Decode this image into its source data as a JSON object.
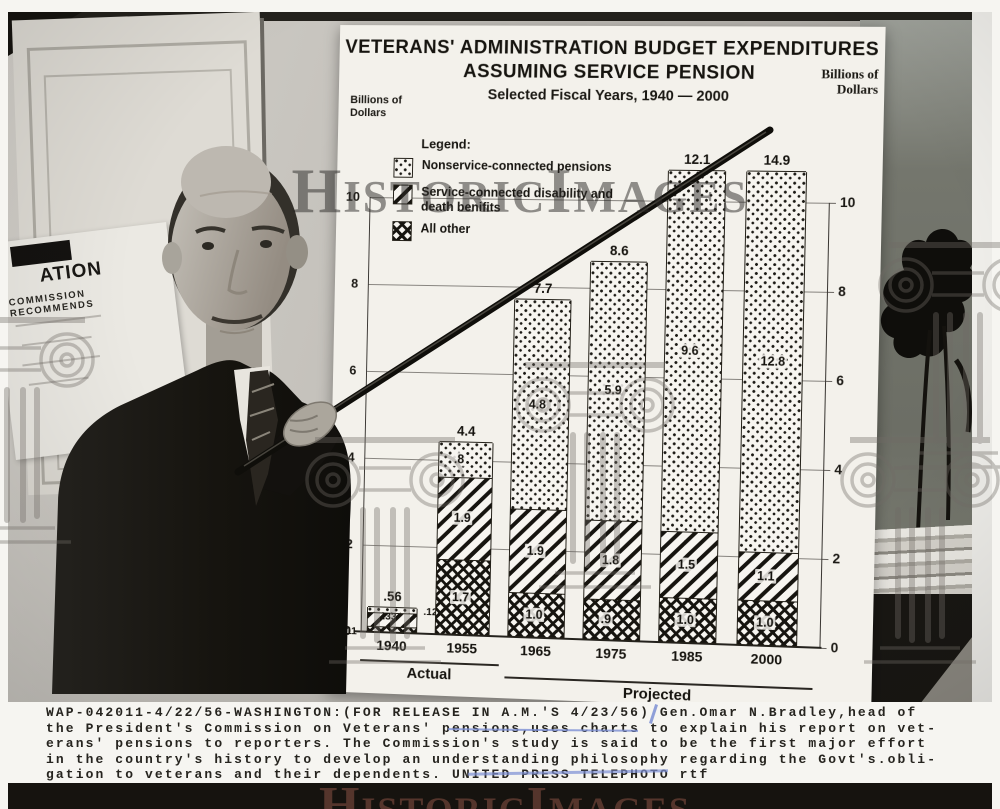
{
  "watermark": {
    "brand": "HistoricImages"
  },
  "photo": {
    "left_poster": {
      "line1": "ATION",
      "line2": "COMMISSION RECOMMENDS"
    }
  },
  "chart": {
    "title_line1": "VETERANS' ADMINISTRATION BUDGET EXPENDITURES",
    "title_line2": "ASSUMING SERVICE PENSION",
    "subtitle": "Selected Fiscal Years, 1940 — 2000",
    "billions_left_1": "Billions of",
    "billions_left_2": "Dollars",
    "billions_right_1": "Billions of",
    "billions_right_2": "Dollars",
    "legend_title": "Legend:"
  },
  "chart_data": {
    "type": "bar",
    "stacked": true,
    "title": "Veterans' Administration Budget Expenditures Assuming Service Pension",
    "subtitle": "Selected Fiscal Years, 1940 - 2000",
    "ylabel": "Billions of Dollars",
    "ylim": [
      0,
      10
    ],
    "yticks": [
      0,
      2,
      4,
      6,
      8,
      10
    ],
    "grid": true,
    "legend_position": "upper-left",
    "categories": [
      "1940",
      "1955",
      "1965",
      "1975",
      "1985",
      "2000"
    ],
    "series": [
      {
        "name": "Nonservice-connected pensions",
        "pattern": "dots",
        "values": [
          0.12,
          0.8,
          4.8,
          5.9,
          9.6,
          12.8
        ],
        "labels": [
          ".12",
          ".8",
          "4.8",
          "5.9",
          "9.6",
          "12.8"
        ]
      },
      {
        "name": "Service-connected disability and death benifits",
        "pattern": "stripes",
        "values": [
          0.33,
          1.9,
          1.9,
          1.8,
          1.5,
          1.1
        ],
        "labels": [
          ".33",
          "1.9",
          "1.9",
          "1.8",
          "1.5",
          "1.1"
        ]
      },
      {
        "name": "All other",
        "pattern": "check",
        "values": [
          0.11,
          1.7,
          1.0,
          0.9,
          1.0,
          1.0
        ],
        "labels": [
          ".11",
          "1.7",
          "1.0",
          ".9",
          "1.0",
          "1.0"
        ]
      }
    ],
    "totals": [
      0.56,
      4.4,
      7.7,
      8.6,
      12.1,
      14.9
    ],
    "total_labels": [
      ".56",
      "4.4",
      "7.7",
      "8.6",
      "12.1",
      "14.9"
    ],
    "group_spans": [
      {
        "label": "Actual",
        "from": "1940",
        "to": "1955"
      },
      {
        "label": "Projected",
        "from": "1965",
        "to": "2000"
      }
    ]
  },
  "caption": {
    "lines": [
      "WAP-042011-4/22/56-WASHINGTON:(FOR RELEASE IN A.M.'S 4/23/56) Gen.Omar N.Bradley,head of",
      "the President's Commission on Veterans' pensions,uses charts to explain his report on vet-",
      "erans' pensions to reporters. The Commission's study is said to be the first major effort",
      "in the country's history to develop an understanding philosophy regarding the Govt's.obli-",
      "gation to veterans and their dependents. UNITED PRESS TELEPHOTO  rtf"
    ]
  }
}
